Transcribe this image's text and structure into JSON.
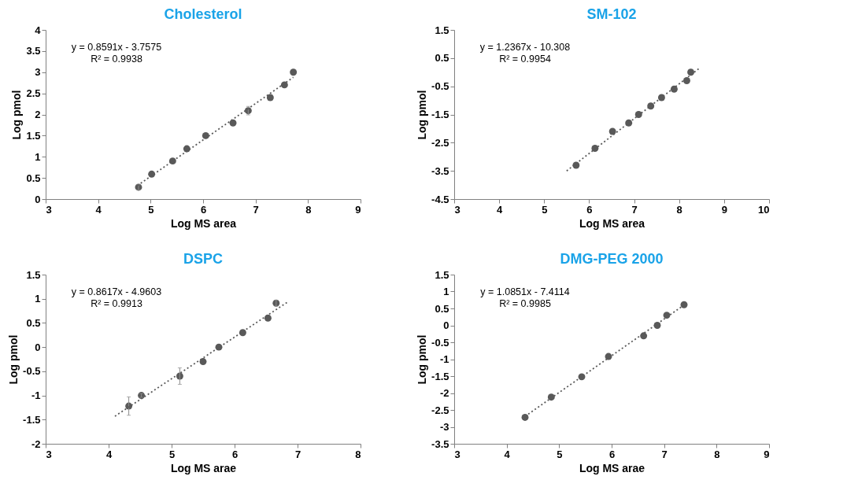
{
  "chart_data": [
    {
      "type": "scatter",
      "title": "Cholesterol",
      "xlabel": "Log MS area",
      "ylabel": "Log pmol",
      "xlim": [
        3,
        9
      ],
      "xticks": [
        3,
        4,
        5,
        6,
        7,
        8,
        9
      ],
      "ylim": [
        0,
        4
      ],
      "yticks": [
        0,
        0.5,
        1,
        1.5,
        2,
        2.5,
        3,
        3.5,
        4
      ],
      "grid": false,
      "legend": false,
      "marker": "circle",
      "annotations": [
        "y = 0.8591x - 3.7575",
        "R² = 0.9938"
      ],
      "series": [
        {
          "type": "scatter",
          "color": "#595959",
          "x": [
            4.77,
            5.02,
            5.42,
            5.69,
            6.05,
            6.57,
            6.86,
            7.28,
            7.55,
            7.72
          ],
          "values": [
            0.28,
            0.59,
            0.9,
            1.19,
            1.5,
            1.8,
            2.09,
            2.4,
            2.7,
            3.0
          ],
          "errors": [
            0.06,
            null,
            null,
            null,
            null,
            null,
            0.1,
            null,
            null,
            null
          ]
        },
        {
          "type": "line",
          "color": "#595959",
          "line_style": "dotted",
          "marker": "none",
          "x": [
            4.75,
            7.72
          ],
          "values": [
            0.32,
            2.88
          ]
        }
      ]
    },
    {
      "type": "scatter",
      "title": "SM-102",
      "xlabel": "Log MS area",
      "ylabel": "Log pmol",
      "xlim": [
        3,
        10
      ],
      "xticks": [
        3,
        4,
        5,
        6,
        7,
        8,
        9,
        10
      ],
      "ylim": [
        -4.5,
        1.5
      ],
      "yticks": [
        -4.5,
        -3.5,
        -2.5,
        -1.5,
        -0.5,
        0.5,
        1.5
      ],
      "grid": false,
      "legend": false,
      "marker": "circle",
      "annotations": [
        "y = 1.2367x - 10.308",
        "R² = 0.9954"
      ],
      "series": [
        {
          "type": "scatter",
          "color": "#595959",
          "x": [
            5.71,
            6.13,
            6.52,
            6.88,
            7.1,
            7.37,
            7.61,
            7.89,
            8.17,
            8.26
          ],
          "values": [
            -3.3,
            -2.7,
            -2.1,
            -1.8,
            -1.5,
            -1.2,
            -0.9,
            -0.6,
            -0.3,
            0.0
          ]
        },
        {
          "type": "line",
          "color": "#595959",
          "line_style": "dotted",
          "marker": "none",
          "x": [
            5.5,
            8.45
          ],
          "values": [
            -3.5,
            0.14
          ]
        }
      ]
    },
    {
      "type": "scatter",
      "title": "DSPC",
      "xlabel": "Log MS arae",
      "ylabel": "Log pmol",
      "xlim": [
        3,
        8
      ],
      "xticks": [
        3,
        4,
        5,
        6,
        7,
        8
      ],
      "ylim": [
        -2,
        1.5
      ],
      "yticks": [
        -2,
        -1.5,
        -1,
        -0.5,
        0,
        0.5,
        1,
        1.5
      ],
      "grid": false,
      "legend": false,
      "marker": "circle",
      "annotations": [
        "y = 0.8617x - 4.9603",
        "R² = 0.9913"
      ],
      "series": [
        {
          "type": "scatter",
          "color": "#595959",
          "x": [
            4.32,
            4.52,
            5.13,
            5.5,
            5.75,
            6.13,
            6.53,
            6.66
          ],
          "values": [
            -1.22,
            -1.0,
            -0.6,
            -0.3,
            0.0,
            0.3,
            0.6,
            0.91
          ],
          "errors": [
            0.19,
            0.04,
            0.17,
            null,
            null,
            null,
            null,
            0.06
          ]
        },
        {
          "type": "line",
          "color": "#595959",
          "line_style": "dotted",
          "marker": "none",
          "x": [
            4.1,
            6.85
          ],
          "values": [
            -1.43,
            0.94
          ]
        }
      ]
    },
    {
      "type": "scatter",
      "title": "DMG-PEG 2000",
      "xlabel": "Log MS arae",
      "ylabel": "Log pmol",
      "xlim": [
        3,
        9
      ],
      "xticks": [
        3,
        4,
        5,
        6,
        7,
        8,
        9
      ],
      "ylim": [
        -3.5,
        1.5
      ],
      "yticks": [
        -3.5,
        -3,
        -2.5,
        -2,
        -1.5,
        -1,
        -0.5,
        0,
        0.5,
        1,
        1.5
      ],
      "grid": false,
      "legend": false,
      "marker": "circle",
      "annotations": [
        "y = 1.0851x - 7.4114",
        "R² = 0.9985"
      ],
      "series": [
        {
          "type": "scatter",
          "color": "#595959",
          "x": [
            4.35,
            4.85,
            5.43,
            5.94,
            6.61,
            6.87,
            7.05,
            7.38
          ],
          "values": [
            -2.72,
            -2.12,
            -1.52,
            -0.92,
            -0.31,
            0.0,
            0.3,
            0.61
          ]
        },
        {
          "type": "line",
          "color": "#595959",
          "line_style": "dotted",
          "marker": "none",
          "x": [
            4.35,
            7.38
          ],
          "values": [
            -2.69,
            0.6
          ]
        }
      ]
    }
  ]
}
